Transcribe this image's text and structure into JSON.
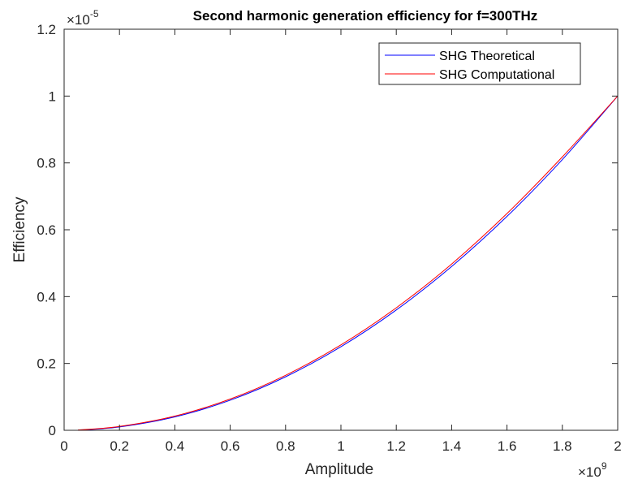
{
  "chart_data": {
    "type": "line",
    "title": "Second harmonic generation efficiency for f=300THz",
    "xlabel": "Amplitude",
    "ylabel": "Efficiency",
    "x_multiplier": {
      "base": "×10",
      "exponent": "9"
    },
    "y_multiplier": {
      "base": "×10",
      "exponent": "-5"
    },
    "xlim": [
      0,
      2
    ],
    "ylim": [
      0,
      1.2
    ],
    "x_ticks": [
      0,
      0.2,
      0.4,
      0.6,
      0.8,
      1,
      1.2,
      1.4,
      1.6,
      1.8,
      2
    ],
    "x_tick_labels": [
      "0",
      "0.2",
      "0.4",
      "0.6",
      "0.8",
      "1",
      "1.2",
      "1.4",
      "1.6",
      "1.8",
      "2"
    ],
    "y_ticks": [
      0,
      0.2,
      0.4,
      0.6,
      0.8,
      1,
      1.2
    ],
    "y_tick_labels": [
      "0",
      "0.2",
      "0.4",
      "0.6",
      "0.8",
      "1",
      "1.2"
    ],
    "grid": false,
    "legend_position": "top-right",
    "series": [
      {
        "name": "SHG Theoretical",
        "color": "#0000ff",
        "x": [
          0.05,
          0.2,
          0.4,
          0.6,
          0.8,
          1.0,
          1.2,
          1.4,
          1.6,
          1.8,
          2.0
        ],
        "y": [
          0.0006,
          0.01,
          0.04,
          0.09,
          0.16,
          0.25,
          0.36,
          0.49,
          0.64,
          0.81,
          1.0
        ]
      },
      {
        "name": "SHG Computational",
        "color": "#ff0000",
        "x": [
          0.05,
          0.2,
          0.4,
          0.6,
          0.8,
          1.0,
          1.2,
          1.4,
          1.6,
          1.8,
          2.0
        ],
        "y": [
          0.0008,
          0.0115,
          0.0425,
          0.0935,
          0.1645,
          0.2555,
          0.3665,
          0.4975,
          0.6485,
          0.818,
          1.0
        ]
      }
    ]
  }
}
